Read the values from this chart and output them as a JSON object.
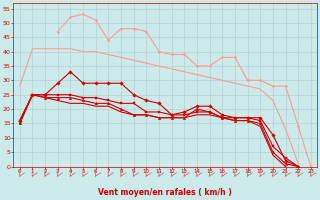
{
  "background_color": "#cdeaea",
  "grid_color": "#b0cccc",
  "xlabel": "Vent moyen/en rafales ( km/h )",
  "xlabel_color": "#cc0000",
  "tick_color": "#cc0000",
  "ylabel_ticks": [
    0,
    5,
    10,
    15,
    20,
    25,
    30,
    35,
    40,
    45,
    50,
    55
  ],
  "xlim": [
    -0.5,
    23.5
  ],
  "ylim": [
    0,
    57
  ],
  "arrow_color": "#cc6666",
  "series": [
    {
      "x": [
        0,
        1,
        2,
        3,
        4,
        5,
        6,
        7,
        8,
        9,
        10,
        11,
        12,
        13,
        14,
        15,
        16,
        17,
        18,
        19,
        20,
        21,
        22
      ],
      "y": [
        28,
        41,
        41,
        41,
        41,
        40,
        40,
        39,
        38,
        37,
        36,
        35,
        34,
        33,
        32,
        31,
        30,
        29,
        28,
        27,
        23,
        13,
        1
      ],
      "color": "#ff9999",
      "linewidth": 0.8,
      "marker": null,
      "linestyle": "-"
    },
    {
      "x": [
        3,
        4,
        5,
        6,
        7,
        8,
        9,
        10,
        11,
        12,
        13,
        14,
        15,
        16,
        17,
        18,
        19,
        20,
        21,
        22,
        23
      ],
      "y": [
        47,
        52,
        53,
        51,
        44,
        48,
        48,
        47,
        40,
        39,
        39,
        35,
        35,
        38,
        38,
        30,
        30,
        28,
        28,
        14,
        0
      ],
      "color": "#ff9999",
      "linewidth": 0.8,
      "marker": "o",
      "markersize": 1.5,
      "linestyle": "-"
    },
    {
      "x": [
        0,
        1,
        2,
        3,
        4,
        5,
        6,
        7,
        8,
        9,
        10,
        11,
        12,
        13,
        14,
        15,
        16,
        17,
        18,
        19,
        20,
        21,
        22
      ],
      "y": [
        16,
        25,
        25,
        29,
        33,
        29,
        29,
        29,
        29,
        25,
        23,
        22,
        18,
        19,
        21,
        21,
        18,
        17,
        17,
        17,
        11,
        2,
        0
      ],
      "color": "#cc0000",
      "linewidth": 0.8,
      "marker": "D",
      "markersize": 1.8,
      "linestyle": "-"
    },
    {
      "x": [
        0,
        1,
        2,
        3,
        4,
        5,
        6,
        7,
        8,
        9,
        10,
        11,
        12,
        13,
        14,
        15,
        16,
        17,
        18,
        19,
        20,
        21,
        22
      ],
      "y": [
        16,
        25,
        25,
        25,
        25,
        24,
        24,
        23,
        22,
        22,
        19,
        19,
        18,
        18,
        19,
        19,
        17,
        17,
        17,
        16,
        7,
        3,
        0
      ],
      "color": "#cc0000",
      "linewidth": 0.8,
      "marker": "s",
      "markersize": 1.5,
      "linestyle": "-"
    },
    {
      "x": [
        0,
        1,
        2,
        3,
        4,
        5,
        6,
        7,
        8,
        9,
        10,
        11,
        12,
        13,
        14,
        15,
        16,
        17,
        18,
        19,
        20,
        21,
        22
      ],
      "y": [
        15,
        25,
        24,
        24,
        24,
        23,
        22,
        22,
        20,
        18,
        18,
        17,
        17,
        17,
        20,
        19,
        17,
        16,
        16,
        15,
        5,
        1,
        0
      ],
      "color": "#cc0000",
      "linewidth": 0.8,
      "marker": "^",
      "markersize": 1.8,
      "linestyle": "-"
    },
    {
      "x": [
        0,
        1,
        2,
        3,
        4,
        5,
        6,
        7,
        8,
        9,
        10,
        11,
        12,
        13,
        14,
        15,
        16,
        17,
        18,
        19,
        20,
        21
      ],
      "y": [
        15,
        25,
        24,
        23,
        22,
        22,
        21,
        21,
        19,
        18,
        18,
        17,
        17,
        17,
        18,
        18,
        17,
        16,
        16,
        14,
        4,
        0
      ],
      "color": "#cc0000",
      "linewidth": 0.8,
      "marker": null,
      "linestyle": "-"
    }
  ],
  "num_arrows": 24
}
